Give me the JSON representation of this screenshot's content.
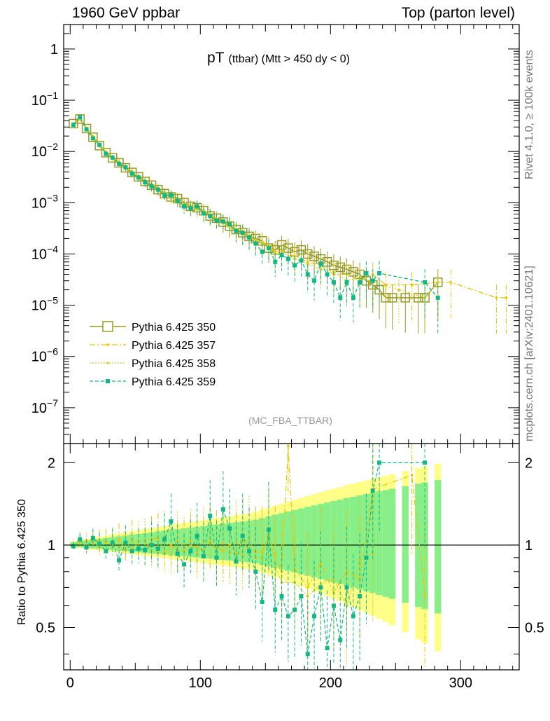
{
  "header": {
    "left": "1960 GeV ppbar",
    "right": "Top (parton level)"
  },
  "side_labels": {
    "rivet": "Rivet 4.1.0, ≥ 100k events",
    "mcplots": "mcplots.cern.ch [arXiv:2401.10621]"
  },
  "plot": {
    "title_main": "pT",
    "title_sub": "(ttbar) (Mtt > 450 dy < 0)",
    "watermark": "(MC_FBA_TTBAR)",
    "ratio_ylabel": "Ratio to Pythia 6.425 350"
  },
  "colors": {
    "s350": "#9a9a22",
    "s357": "#e8c400",
    "s358": "#d4cc1e",
    "s359": "#12b884",
    "band_yellow": "#ffff88",
    "band_green": "#88ee88"
  },
  "chart_data": {
    "type": "line",
    "xlim": [
      -5,
      345
    ],
    "ylim_main": [
      2e-08,
      3
    ],
    "ylim_ratio": [
      0.35,
      2.35
    ],
    "x_ticks": [
      0,
      100,
      200,
      300
    ],
    "y_ticks_main": [
      {
        "v": 1,
        "label": "1"
      },
      {
        "v": 0.1,
        "label": "10^-1"
      },
      {
        "v": 0.01,
        "label": "10^-2"
      },
      {
        "v": 0.001,
        "label": "10^-3"
      },
      {
        "v": 0.0001,
        "label": "10^-4"
      },
      {
        "v": 1e-05,
        "label": "10^-5"
      },
      {
        "v": 1e-06,
        "label": "10^-6"
      },
      {
        "v": 1e-07,
        "label": "10^-7"
      }
    ],
    "y_ticks_ratio": [
      {
        "v": 2,
        "label": "2"
      },
      {
        "v": 1,
        "label": "1"
      },
      {
        "v": 0.5,
        "label": "0.5"
      }
    ],
    "series": [
      {
        "name": "Pythia 6.425 350",
        "key": "s350",
        "x": [
          2.5,
          7.5,
          12.5,
          17.5,
          22.5,
          27.5,
          32.5,
          37.5,
          42.5,
          47.5,
          52.5,
          57.5,
          62.5,
          67.5,
          72.5,
          77.5,
          82.5,
          87.5,
          92.5,
          97.5,
          102.5,
          107.5,
          112.5,
          117.5,
          122.5,
          127.5,
          132.5,
          137.5,
          142.5,
          147.5,
          152.5,
          157.5,
          162.5,
          167.5,
          172.5,
          177.5,
          182.5,
          187.5,
          192.5,
          197.5,
          202.5,
          207.5,
          212.5,
          217.5,
          222.5,
          227.5,
          232.5,
          237.5,
          242.5,
          247.5,
          257.5,
          267.5,
          272.5,
          282.5
        ],
        "values": [
          0.035,
          0.043,
          0.028,
          0.019,
          0.013,
          0.0095,
          0.0075,
          0.006,
          0.0048,
          0.0039,
          0.0032,
          0.0026,
          0.0022,
          0.0018,
          0.0015,
          0.0013,
          0.0012,
          0.001,
          0.00085,
          0.0008,
          0.0007,
          0.00055,
          0.0005,
          0.00042,
          0.00035,
          0.0003,
          0.00026,
          0.00022,
          0.0002,
          0.00018,
          0.00013,
          0.00012,
          0.00015,
          0.00013,
          0.00011,
          0.00012,
          0.0001,
          9e-05,
          8e-05,
          7e-05,
          6e-05,
          5.5e-05,
          5e-05,
          4.5e-05,
          4e-05,
          3e-05,
          2.5e-05,
          2e-05,
          1.4e-05,
          1.4e-05,
          1.4e-05,
          1.4e-05,
          1.4e-05,
          2.8e-05
        ]
      },
      {
        "name": "Pythia 6.425 357",
        "key": "s357",
        "x": [
          2.5,
          7.5,
          12.5,
          17.5,
          22.5,
          27.5,
          32.5,
          37.5,
          42.5,
          47.5,
          52.5,
          57.5,
          62.5,
          67.5,
          72.5,
          77.5,
          82.5,
          87.5,
          92.5,
          97.5,
          102.5,
          107.5,
          112.5,
          117.5,
          122.5,
          127.5,
          132.5,
          137.5,
          142.5,
          147.5,
          152.5,
          157.5,
          162.5,
          172.5,
          182.5,
          192.5,
          202.5,
          212.5,
          222.5,
          232.5,
          242.5,
          262.5,
          282.5,
          292.5,
          327.5,
          335
        ],
        "values": [
          0.034,
          0.046,
          0.027,
          0.02,
          0.0135,
          0.0098,
          0.0074,
          0.0063,
          0.0046,
          0.0041,
          0.0031,
          0.0025,
          0.0023,
          0.0019,
          0.0014,
          0.0013,
          0.00115,
          0.00095,
          0.00085,
          0.00078,
          0.00067,
          0.00056,
          0.00049,
          0.0004,
          0.00035,
          0.00028,
          0.00027,
          0.00021,
          0.00019,
          0.00017,
          0.00014,
          0.00011,
          0.00012,
          9e-05,
          7e-05,
          6e-05,
          4e-05,
          4e-05,
          3e-05,
          4e-05,
          2.5e-05,
          2.5e-05,
          2.8e-05,
          2.8e-05,
          1.4e-05,
          1.4e-05
        ]
      },
      {
        "name": "Pythia 6.425 358",
        "key": "s358",
        "x": [
          2.5,
          7.5,
          12.5,
          17.5,
          22.5,
          27.5,
          32.5,
          37.5,
          42.5,
          47.5,
          52.5,
          57.5,
          62.5,
          67.5,
          72.5,
          77.5,
          82.5,
          87.5,
          92.5,
          97.5,
          102.5,
          107.5,
          112.5,
          117.5,
          122.5,
          127.5,
          132.5,
          137.5,
          142.5,
          147.5,
          152.5,
          157.5,
          162.5,
          172.5,
          182.5,
          192.5,
          202.5,
          212.5,
          222.5,
          232.5,
          252.5,
          272.5,
          282.5
        ],
        "values": [
          0.035,
          0.044,
          0.029,
          0.0195,
          0.0128,
          0.0097,
          0.0077,
          0.0059,
          0.0049,
          0.0038,
          0.0033,
          0.0027,
          0.0021,
          0.0017,
          0.0016,
          0.0012,
          0.00125,
          0.00098,
          0.00088,
          0.00074,
          0.00072,
          0.00058,
          0.00047,
          0.00043,
          0.00033,
          0.00031,
          0.00024,
          0.00023,
          0.00018,
          0.00016,
          0.00015,
          0.0001,
          0.00011,
          8e-05,
          6.5e-05,
          5e-05,
          4.5e-05,
          3e-05,
          3.5e-05,
          2.8e-05,
          2e-05,
          1.4e-05,
          2.8e-05
        ]
      },
      {
        "name": "Pythia 6.425 359",
        "key": "s359",
        "x": [
          2.5,
          7.5,
          12.5,
          17.5,
          22.5,
          27.5,
          32.5,
          37.5,
          42.5,
          47.5,
          52.5,
          57.5,
          62.5,
          67.5,
          72.5,
          77.5,
          82.5,
          87.5,
          92.5,
          97.5,
          102.5,
          107.5,
          112.5,
          117.5,
          122.5,
          127.5,
          132.5,
          137.5,
          142.5,
          147.5,
          152.5,
          157.5,
          162.5,
          167.5,
          172.5,
          177.5,
          182.5,
          187.5,
          192.5,
          197.5,
          202.5,
          207.5,
          212.5,
          217.5,
          222.5,
          227.5,
          232.5,
          237.5,
          272.5,
          282.5
        ],
        "values": [
          0.033,
          0.047,
          0.027,
          0.018,
          0.0135,
          0.009,
          0.0076,
          0.0057,
          0.0049,
          0.0037,
          0.0031,
          0.0025,
          0.0021,
          0.0018,
          0.0014,
          0.0014,
          0.0011,
          0.00085,
          0.00078,
          0.00085,
          0.00062,
          0.00055,
          0.00045,
          0.00043,
          0.00038,
          0.00028,
          0.00026,
          0.00021,
          0.00016,
          0.00011,
          0.00013,
          7e-05,
          9.5e-05,
          8e-05,
          6e-05,
          7.5e-05,
          4e-05,
          3e-05,
          6.5e-05,
          4e-05,
          2.8e-05,
          1.4e-05,
          2.8e-05,
          1.4e-05,
          2.8e-05,
          4.2e-05,
          3e-05,
          4.2e-05,
          2.8e-05,
          1.4e-05
        ]
      }
    ],
    "legend": [
      "Pythia 6.425 350",
      "Pythia 6.425 357",
      "Pythia 6.425 358",
      "Pythia 6.425 359"
    ],
    "ratio_series": [
      {
        "key": "s357",
        "x": [
          2.5,
          7.5,
          12.5,
          17.5,
          22.5,
          27.5,
          32.5,
          37.5,
          42.5,
          47.5,
          52.5,
          57.5,
          62.5,
          67.5,
          72.5,
          77.5,
          82.5,
          87.5,
          92.5,
          97.5,
          102.5,
          107.5,
          112.5,
          117.5,
          122.5,
          127.5,
          132.5,
          137.5,
          142.5,
          147.5,
          152.5,
          157.5,
          162.5,
          167.5,
          172.5,
          182.5,
          192.5,
          202.5,
          212.5,
          222.5,
          232.5,
          262.5,
          272.5
        ],
        "values": [
          0.98,
          1.06,
          0.97,
          1.05,
          1.04,
          1.03,
          0.99,
          1.05,
          0.96,
          1.05,
          0.97,
          0.96,
          1.05,
          1.06,
          0.93,
          1.0,
          0.96,
          0.95,
          1.0,
          0.98,
          0.96,
          1.02,
          0.98,
          0.95,
          1.0,
          0.93,
          1.04,
          0.95,
          0.95,
          0.94,
          1.08,
          0.92,
          0.8,
          2.3,
          0.82,
          0.7,
          0.86,
          0.67,
          0.8,
          0.75,
          1.6,
          1.8,
          0.65
        ]
      },
      {
        "key": "s358",
        "x": [
          2.5,
          7.5,
          12.5,
          17.5,
          22.5,
          27.5,
          32.5,
          37.5,
          42.5,
          47.5,
          52.5,
          57.5,
          62.5,
          67.5,
          72.5,
          77.5,
          82.5,
          87.5,
          92.5,
          97.5,
          102.5,
          107.5,
          112.5,
          117.5,
          122.5,
          127.5,
          132.5,
          137.5,
          142.5,
          147.5,
          152.5,
          157.5,
          162.5,
          172.5,
          182.5,
          192.5,
          202.5,
          212.5,
          222.5,
          232.5
        ],
        "values": [
          1.0,
          1.02,
          1.04,
          1.03,
          0.98,
          1.02,
          1.03,
          0.98,
          1.02,
          0.97,
          1.03,
          1.04,
          0.95,
          0.94,
          1.07,
          0.92,
          1.04,
          0.98,
          1.04,
          0.93,
          1.03,
          1.05,
          0.94,
          1.02,
          0.94,
          1.03,
          0.92,
          1.05,
          0.9,
          0.89,
          1.15,
          0.83,
          0.73,
          0.73,
          0.65,
          0.72,
          0.75,
          0.6,
          0.88,
          0.93
        ]
      },
      {
        "key": "s359",
        "x": [
          2.5,
          7.5,
          12.5,
          17.5,
          22.5,
          27.5,
          32.5,
          37.5,
          42.5,
          47.5,
          52.5,
          57.5,
          62.5,
          67.5,
          72.5,
          77.5,
          82.5,
          87.5,
          92.5,
          97.5,
          102.5,
          107.5,
          112.5,
          117.5,
          122.5,
          127.5,
          132.5,
          137.5,
          142.5,
          147.5,
          152.5,
          157.5,
          162.5,
          167.5,
          172.5,
          177.5,
          182.5,
          187.5,
          192.5,
          197.5,
          202.5,
          207.5,
          212.5,
          217.5,
          222.5,
          227.5,
          232.5,
          237.5,
          272.5
        ],
        "values": [
          0.99,
          1.05,
          0.98,
          1.06,
          1.01,
          0.95,
          1.02,
          0.88,
          1.02,
          0.95,
          0.97,
          0.96,
          1.0,
          0.97,
          1.05,
          1.22,
          0.93,
          0.85,
          0.95,
          1.08,
          0.91,
          1.28,
          0.9,
          1.35,
          1.15,
          0.87,
          1.08,
          0.95,
          0.8,
          0.62,
          1.14,
          0.58,
          0.65,
          0.55,
          0.58,
          0.65,
          0.4,
          0.55,
          0.7,
          0.42,
          0.6,
          0.45,
          0.7,
          0.55,
          0.65,
          0.9,
          1.58,
          2.0,
          2.0
        ]
      }
    ]
  }
}
